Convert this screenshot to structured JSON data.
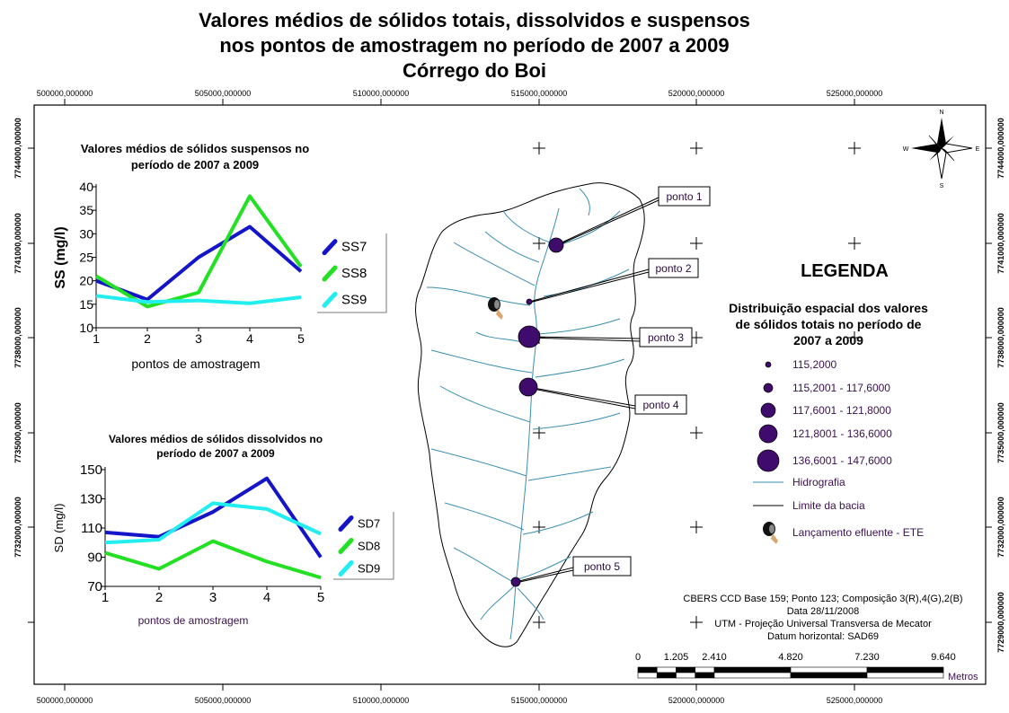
{
  "title": {
    "line1": "Valores médios de sólidos totais, dissolvidos e suspensos",
    "line2": "nos pontos de amostragem no período de 2007 a 2009",
    "line3": "Córrego do Boi"
  },
  "grid": {
    "x_labels": [
      "500000,000000",
      "505000,000000",
      "510000,000000",
      "515000,000000",
      "520000,000000",
      "525000,000000"
    ],
    "y_labels_left": [
      "7744000,000000",
      "7741000,000000",
      "7738000,000000",
      "7735000,000000",
      "7732000,000000"
    ],
    "y_labels_right": [
      "7744000,000000",
      "7741000,000000",
      "7738000,000000",
      "7735000,000000",
      "7732000,000000",
      "7729000,000000"
    ]
  },
  "north_arrow": {
    "n": "N",
    "s": "S",
    "e": "E",
    "w": "W"
  },
  "points": [
    {
      "label": "ponto 1",
      "class": 3
    },
    {
      "label": "ponto 2",
      "class": 1
    },
    {
      "label": "ponto 3",
      "class": 5
    },
    {
      "label": "ponto 4",
      "class": 4
    },
    {
      "label": "ponto 5",
      "class": 2
    }
  ],
  "legend": {
    "title": "LEGENDA",
    "subtitle1": "Distribuição espacial dos valores",
    "subtitle2": "de  sólidos totais no período de",
    "subtitle3": "2007 a 2009",
    "classes": [
      "115,2000",
      "115,2001 - 117,6000",
      "117,6001 - 121,8000",
      "121,8001 - 136,6000",
      "136,6001 - 147,6000"
    ],
    "hidrografia": "Hidrografia",
    "limite": "Limite da bacia",
    "ete": "Lançamento efluente - ETE",
    "colors": {
      "point": "#3f0c6e",
      "river": "#3a8fb0"
    }
  },
  "credits": {
    "line1": "CBERS CCD Base 159; Ponto 123; Composição 3(R),4(G),2(B)",
    "line2": "Data 28/11/2008",
    "line3": "UTM - Projeção Universal Transversa de Mecator",
    "line4": "Datum horizontal: SAD69"
  },
  "scale": {
    "labels": [
      "0",
      "1.205",
      "2.410",
      "4.820",
      "7.230",
      "9.640"
    ],
    "unit": "Metros"
  },
  "chart_data": [
    {
      "type": "line",
      "title": "Valores médios de sólidos suspensos no período de 2007 a 2009",
      "title1": "Valores médios de sólidos suspensos no",
      "title2": "período de 2007 a 2009",
      "xlabel": "pontos de amostragem",
      "ylabel": "SS (mg/l)",
      "x": [
        1,
        2,
        3,
        4,
        5
      ],
      "ylim": [
        10,
        40
      ],
      "yticks": [
        10,
        15,
        20,
        25,
        30,
        35,
        40
      ],
      "legend_position": "right",
      "series": [
        {
          "name": "SS7",
          "color": "#1414c8",
          "values": [
            20,
            16,
            25,
            31.5,
            22
          ]
        },
        {
          "name": "SS8",
          "color": "#22e022",
          "values": [
            21,
            14.5,
            17.5,
            38,
            23
          ]
        },
        {
          "name": "SS9",
          "color": "#22eef0",
          "values": [
            16.8,
            15.5,
            15.8,
            15.2,
            16.5
          ]
        }
      ]
    },
    {
      "type": "line",
      "title": "Valores médios de sólidos dissolvidos no período de 2007 a 2009",
      "title1": "Valores médios de sólidos dissolvidos no",
      "title2": "período de 2007 a 2009",
      "xlabel": "pontos de amostragem",
      "ylabel": "SD (mg/l)",
      "x": [
        1,
        2,
        3,
        4,
        5
      ],
      "ylim": [
        70,
        150
      ],
      "yticks": [
        70,
        90,
        110,
        130,
        150
      ],
      "legend_position": "right",
      "series": [
        {
          "name": "SD7",
          "color": "#1414c8",
          "values": [
            107,
            104,
            121,
            144,
            90
          ]
        },
        {
          "name": "SD8",
          "color": "#22e022",
          "values": [
            93,
            82,
            101,
            87,
            76
          ]
        },
        {
          "name": "SD9",
          "color": "#22eef0",
          "values": [
            100,
            102,
            127,
            123,
            106
          ]
        }
      ]
    }
  ]
}
